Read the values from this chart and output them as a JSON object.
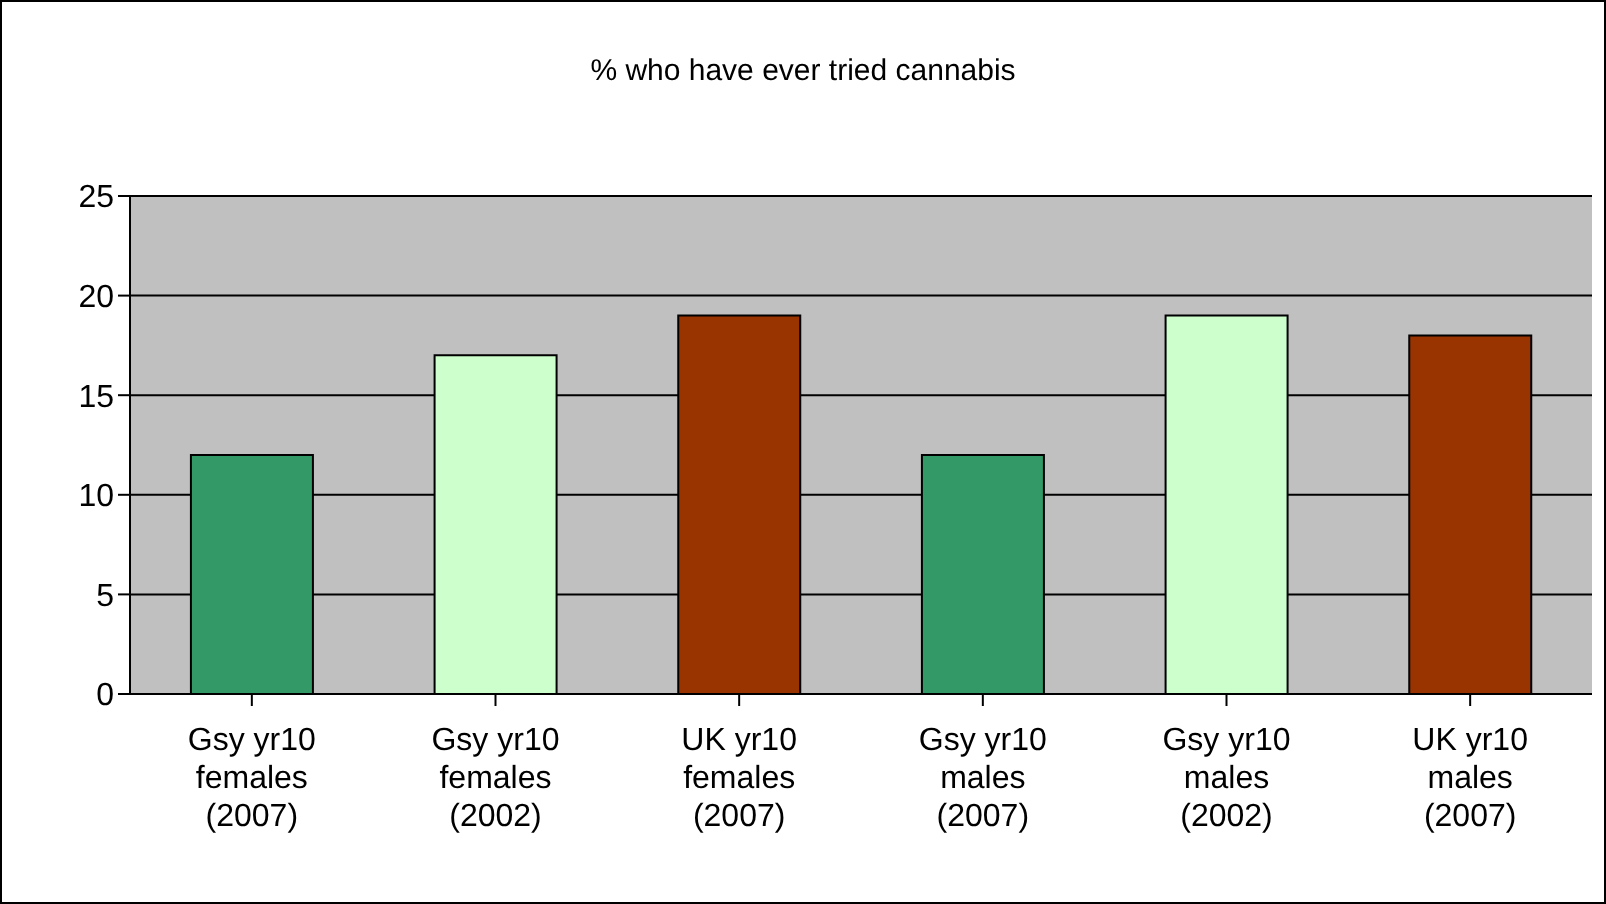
{
  "chart_data": {
    "type": "bar",
    "title": "% who have ever tried cannabis",
    "categories": [
      "Gsy yr10 females (2007)",
      "Gsy yr10 females (2002)",
      "UK yr10 females (2007)",
      "Gsy yr10 males (2007)",
      "Gsy yr10 males (2002)",
      "UK yr10 males (2007)"
    ],
    "values": [
      12,
      17,
      19,
      12,
      19,
      18
    ],
    "colors": [
      "#339966",
      "#ccffcc",
      "#993300",
      "#339966",
      "#ccffcc",
      "#993300"
    ],
    "ylim": [
      0,
      25
    ],
    "yticks": [
      0,
      5,
      10,
      15,
      20,
      25
    ],
    "grid": "y"
  }
}
